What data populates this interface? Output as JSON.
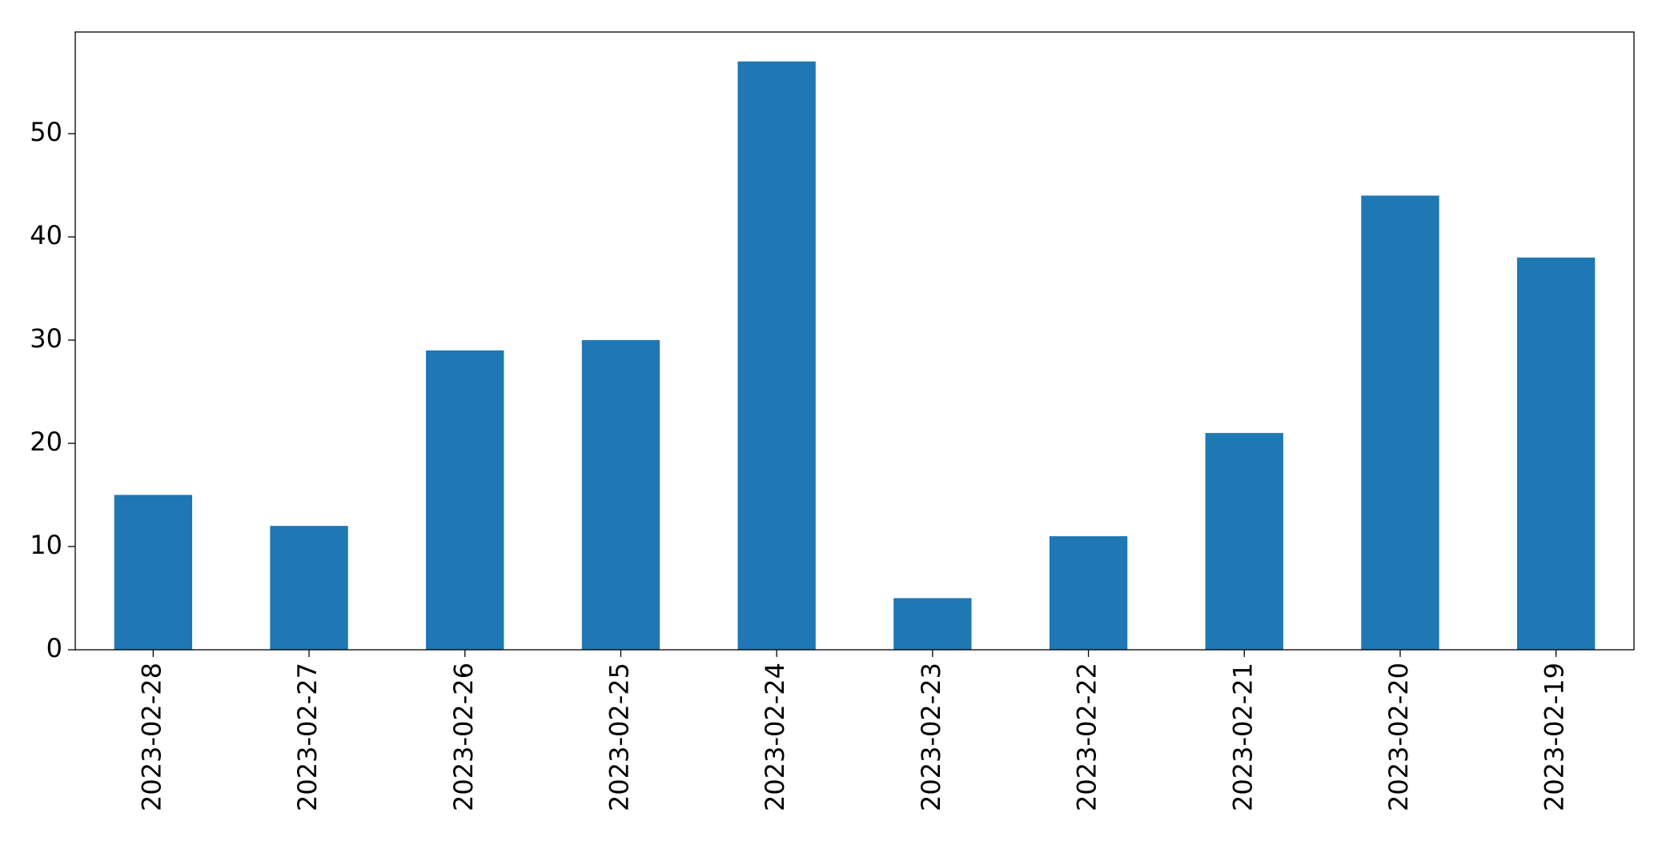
{
  "chart_data": {
    "type": "bar",
    "categories": [
      "2023-02-28",
      "2023-02-27",
      "2023-02-26",
      "2023-02-25",
      "2023-02-24",
      "2023-02-23",
      "2023-02-22",
      "2023-02-21",
      "2023-02-20",
      "2023-02-19"
    ],
    "values": [
      15,
      12,
      29,
      30,
      57,
      5,
      11,
      21,
      44,
      38
    ],
    "color": "#1f77b4",
    "ylim": [
      0,
      59.85
    ],
    "yticks": [
      0,
      10,
      20,
      30,
      40,
      50
    ],
    "grid": false
  }
}
